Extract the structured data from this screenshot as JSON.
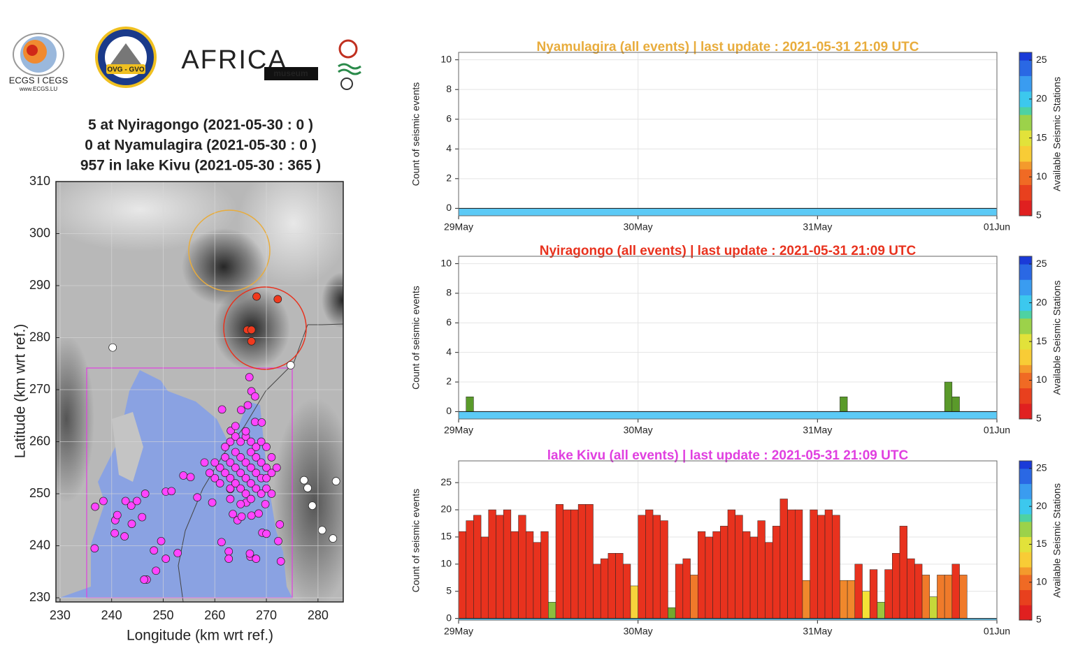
{
  "logos": [
    "ECGS I CEGS",
    "www.ECGS.LU",
    "OVG - GVO",
    "AFRICA",
    "museum"
  ],
  "chart_data": [
    {
      "type": "scatter",
      "title": [
        "5 at Nyiragongo (2021-05-30 : 0 )",
        "0 at Nyamulagira (2021-05-30 : 0 )",
        "957 in lake Kivu (2021-05-30 : 365 )"
      ],
      "xlabel": "Longitude (km wrt ref.)",
      "ylabel": "Latitude (km wrt ref.)",
      "xlim": [
        229.2,
        284.9
      ],
      "ylim": [
        229.2,
        310
      ],
      "xticks": [
        230,
        240,
        250,
        260,
        270,
        280
      ],
      "yticks": [
        230,
        240,
        250,
        260,
        270,
        280,
        290,
        300,
        310
      ],
      "grid": true,
      "series": [
        {
          "color": "#ff44ff",
          "x": [
            266.7,
            267.1,
            267.8,
            266.4,
            265.1,
            261.4,
            263.1,
            267.8,
            269.1,
            236.8,
            238.4,
            236.7,
            240.7,
            241.1,
            242.7,
            243.8,
            244.9,
            243.9,
            245.9,
            246.5,
            242.5,
            240.6,
            248.2,
            249.6,
            250.5,
            252.8,
            248.6,
            246.8,
            246.3,
            250.5,
            251.6,
            253.9,
            255.3,
            256.6,
            259.5,
            261.3,
            262.7,
            262.7,
            266.9,
            268.0,
            266.8,
            269.2,
            270.0,
            272.6,
            272.3,
            272.8,
            263.5,
            264.4,
            265.2,
            267.1,
            268.5,
            269.8,
            266.1,
            263.0,
            262,
            263,
            264,
            265,
            266,
            267,
            268,
            269,
            270,
            271,
            261,
            262,
            263,
            264,
            265,
            266,
            267,
            268,
            269,
            270,
            260,
            261,
            263,
            264,
            265,
            266,
            267,
            268,
            269,
            271,
            263,
            264,
            265,
            266,
            267,
            268,
            269,
            270,
            266,
            264,
            259,
            258,
            260,
            262,
            270,
            272,
            265,
            267,
            263,
            271
          ],
          "values": [
            272.4,
            269.7,
            268.7,
            267.0,
            266.1,
            266.2,
            262.1,
            263.8,
            263.7,
            247.5,
            248.6,
            239.5,
            244.9,
            245.9,
            248.6,
            247.7,
            248.6,
            244.2,
            245.5,
            250.0,
            241.8,
            242.4,
            239.1,
            240.9,
            237.5,
            238.6,
            235.2,
            233.5,
            233.5,
            250.4,
            250.5,
            253.5,
            253.2,
            249.3,
            248.3,
            240.7,
            238.9,
            237.5,
            237.9,
            237.5,
            238.5,
            242.5,
            242.3,
            244.1,
            240.9,
            237.0,
            246.1,
            244.9,
            245.6,
            245.8,
            246.2,
            248.0,
            248.3,
            250.9,
            257,
            256,
            258,
            257,
            256,
            258,
            257,
            256,
            255,
            257,
            255,
            254,
            253,
            255,
            254,
            253,
            255,
            254,
            253,
            253,
            253,
            252,
            251,
            252,
            251,
            250,
            252,
            251,
            250,
            254,
            260,
            261,
            260,
            261,
            260,
            259,
            260,
            259,
            262,
            263,
            254,
            256,
            256,
            259,
            251,
            255,
            248,
            249,
            249,
            250
          ]
        },
        {
          "color": "#f03a1e",
          "x": [
            268.1,
            272.2,
            266.3,
            267.1,
            267.1
          ],
          "values": [
            287.9,
            287.4,
            281.5,
            281.5,
            279.3
          ]
        },
        {
          "color": "#ffffff",
          "x": [
            240.2,
            274.7,
            277.3,
            278.0,
            278.9,
            280.8,
            282.9,
            283.5
          ],
          "values": [
            278.1,
            274.7,
            252.6,
            251.1,
            247.7,
            243.0,
            241.4,
            252.4
          ]
        }
      ]
    },
    {
      "type": "histogram",
      "title": "Nyamulagira (all events) | last update : 2021-05-31 21:09 UTC",
      "title_color": "#e8ac3c",
      "ylabel": "Count of seismic events",
      "xlim": [
        0,
        72
      ],
      "ylim": [
        -0.5,
        10.5
      ],
      "yticks": [
        0,
        2,
        4,
        6,
        8,
        10
      ],
      "xticks": [
        {
          "value": 0,
          "label": "29May"
        },
        {
          "value": 24,
          "label": "30May"
        },
        {
          "value": 48,
          "label": "31May"
        },
        {
          "value": 72,
          "label": "01Jun"
        }
      ],
      "grid": true,
      "color": "#5a9a2a",
      "bins": [
        0,
        1,
        2,
        3,
        4,
        5,
        6,
        7,
        8,
        9,
        10,
        11,
        12,
        13,
        14,
        15,
        16,
        17,
        18,
        19,
        20,
        21,
        22,
        23,
        24,
        25,
        26,
        27,
        28,
        29,
        30,
        31,
        32,
        33,
        34,
        35,
        36,
        37,
        38,
        39,
        40,
        41,
        42,
        43,
        44,
        45,
        46,
        47,
        48,
        49,
        50,
        51,
        52,
        53,
        54,
        55,
        56,
        57,
        58,
        59,
        60,
        61,
        62,
        63,
        64,
        65,
        66,
        67,
        68
      ],
      "values": [
        0,
        0,
        0,
        0,
        0,
        0,
        0,
        0,
        0,
        0,
        0,
        0,
        0,
        0,
        0,
        0,
        0,
        0,
        0,
        0,
        0,
        0,
        0,
        0,
        0,
        0,
        0,
        0,
        0,
        0,
        0,
        0,
        0,
        0,
        0,
        0,
        0,
        0,
        0,
        0,
        0,
        0,
        0,
        0,
        0,
        0,
        0,
        0,
        0,
        0,
        0,
        0,
        0,
        0,
        0,
        0,
        0,
        0,
        0,
        0,
        0,
        0,
        0,
        0,
        0,
        0,
        0,
        0
      ],
      "colorbar": {
        "label": "Available Seismic Stations",
        "lim": [
          5,
          26
        ],
        "ticks": [
          5,
          10,
          15,
          20,
          25
        ]
      }
    },
    {
      "type": "histogram",
      "title": "Nyiragongo (all events) | last update : 2021-05-31 21:09 UTC",
      "title_color": "#e8321e",
      "ylabel": "Count of seismic events",
      "xlim": [
        0,
        72
      ],
      "ylim": [
        -0.5,
        10.5
      ],
      "yticks": [
        0,
        2,
        4,
        6,
        8,
        10
      ],
      "xticks": [
        {
          "value": 0,
          "label": "29May"
        },
        {
          "value": 24,
          "label": "30May"
        },
        {
          "value": 48,
          "label": "31May"
        },
        {
          "value": 72,
          "label": "01Jun"
        }
      ],
      "grid": true,
      "color": "#5a9a2a",
      "bins": [
        0,
        1,
        2,
        3,
        4,
        5,
        6,
        7,
        8,
        9,
        10,
        11,
        12,
        13,
        14,
        15,
        16,
        17,
        18,
        19,
        20,
        21,
        22,
        23,
        24,
        25,
        26,
        27,
        28,
        29,
        30,
        31,
        32,
        33,
        34,
        35,
        36,
        37,
        38,
        39,
        40,
        41,
        42,
        43,
        44,
        45,
        46,
        47,
        48,
        49,
        50,
        51,
        52,
        53,
        54,
        55,
        56,
        57,
        58,
        59,
        60,
        61,
        62,
        63,
        64,
        65,
        66,
        67,
        68
      ],
      "values": [
        0,
        1,
        0,
        0,
        0,
        0,
        0,
        0,
        0,
        0,
        0,
        0,
        0,
        0,
        0,
        0,
        0,
        0,
        0,
        0,
        0,
        0,
        0,
        0,
        0,
        0,
        0,
        0,
        0,
        0,
        0,
        0,
        0,
        0,
        0,
        0,
        0,
        0,
        0,
        0,
        0,
        0,
        0,
        0,
        0,
        0,
        0,
        0,
        0,
        0,
        0,
        1,
        0,
        0,
        0,
        0,
        0,
        0,
        0,
        0,
        0,
        0,
        0,
        0,
        0,
        2,
        1,
        0
      ],
      "colorbar": {
        "label": "Available Seismic Stations",
        "lim": [
          5,
          26
        ],
        "ticks": [
          5,
          10,
          15,
          20,
          25
        ]
      }
    },
    {
      "type": "histogram",
      "title": "lake Kivu (all events) | last update : 2021-05-31 21:09 UTC",
      "title_color": "#e040e0",
      "ylabel": "Count of seismic events",
      "xlim": [
        0,
        72
      ],
      "ylim": [
        -0.3,
        29
      ],
      "yticks": [
        0,
        5,
        10,
        15,
        20,
        25
      ],
      "xticks": [
        {
          "value": 0,
          "label": "29May"
        },
        {
          "value": 24,
          "label": "30May"
        },
        {
          "value": 48,
          "label": "31May"
        },
        {
          "value": 72,
          "label": "01Jun"
        }
      ],
      "grid": true,
      "color": "#e8321e",
      "bins": [
        0,
        1,
        2,
        3,
        4,
        5,
        6,
        7,
        8,
        9,
        10,
        11,
        12,
        13,
        14,
        15,
        16,
        17,
        18,
        19,
        20,
        21,
        22,
        23,
        24,
        25,
        26,
        27,
        28,
        29,
        30,
        31,
        32,
        33,
        34,
        35,
        36,
        37,
        38,
        39,
        40,
        41,
        42,
        43,
        44,
        45,
        46,
        47,
        48,
        49,
        50,
        51,
        52,
        53,
        54,
        55,
        56,
        57,
        58,
        59,
        60,
        61,
        62,
        63,
        64,
        65,
        66,
        67,
        68
      ],
      "values": [
        16,
        18,
        19,
        15,
        20,
        19,
        20,
        16,
        19,
        16,
        14,
        16,
        3,
        21,
        20,
        20,
        21,
        21,
        10,
        11,
        12,
        12,
        10,
        6,
        19,
        20,
        19,
        18,
        2,
        10,
        11,
        8,
        16,
        15,
        16,
        17,
        20,
        19,
        16,
        15,
        18,
        14,
        17,
        22,
        20,
        20,
        7,
        20,
        19,
        20,
        19,
        7,
        7,
        10,
        5,
        9,
        3,
        9,
        12,
        17,
        11,
        10,
        8,
        4,
        8,
        8,
        10,
        8
      ],
      "colors": [
        "#e8321e",
        "#e8321e",
        "#e8321e",
        "#e8321e",
        "#e8321e",
        "#e8321e",
        "#e8321e",
        "#e8321e",
        "#e8321e",
        "#e8321e",
        "#e8321e",
        "#e8321e",
        "#8cbf3f",
        "#e8321e",
        "#e8321e",
        "#e8321e",
        "#e8321e",
        "#e8321e",
        "#e8321e",
        "#e8321e",
        "#e8321e",
        "#e8321e",
        "#e8321e",
        "#f7d43c",
        "#e8321e",
        "#e8321e",
        "#e8321e",
        "#e8321e",
        "#74a82e",
        "#e8321e",
        "#e8321e",
        "#f07a2a",
        "#e8321e",
        "#e8321e",
        "#e8321e",
        "#e8321e",
        "#e8321e",
        "#e8321e",
        "#e8321e",
        "#e8321e",
        "#e8321e",
        "#e8321e",
        "#e8321e",
        "#e8321e",
        "#e8321e",
        "#e8321e",
        "#f0882c",
        "#e8321e",
        "#e8321e",
        "#e8321e",
        "#e8321e",
        "#f0882c",
        "#f0882c",
        "#e8321e",
        "#f4e236",
        "#e8321e",
        "#9cc63e",
        "#e8321e",
        "#e8321e",
        "#e8321e",
        "#e8321e",
        "#e8321e",
        "#f07a2a",
        "#c6d83a",
        "#f07a2a",
        "#f07a2a",
        "#e8321e",
        "#f07a2a"
      ],
      "colorbar": {
        "label": "Available Seismic Stations",
        "lim": [
          5,
          26
        ],
        "ticks": [
          5,
          10,
          15,
          20,
          25
        ]
      }
    }
  ],
  "colormap": [
    "#e02020",
    "#e8401e",
    "#f06a24",
    "#f49a2c",
    "#f8cc36",
    "#e2e23a",
    "#9cd24a",
    "#4ed2a2",
    "#3cc8ee",
    "#3a9cf0",
    "#2a68e4",
    "#1a3ad8"
  ]
}
